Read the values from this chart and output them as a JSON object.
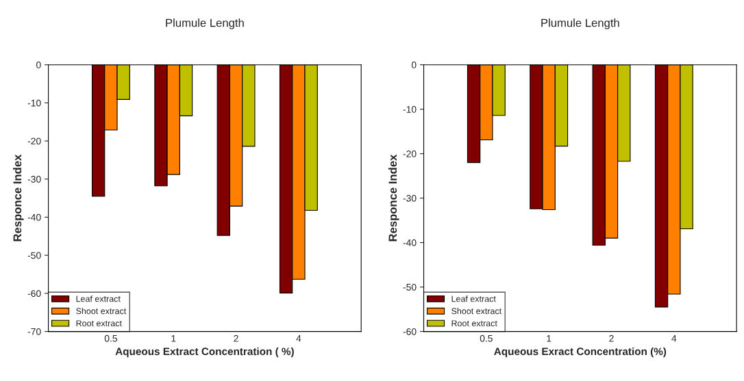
{
  "chart_data": [
    {
      "type": "bar",
      "title": "Plumule Length",
      "xlabel": "Aqueous Extract Concentration ( %)",
      "ylabel": "Responce Index",
      "categories": [
        "0.5",
        "1",
        "2",
        "4"
      ],
      "series": [
        {
          "name": "Leaf extract",
          "color": "#800000",
          "values": [
            -34.5,
            -31.8,
            -44.8,
            -59.9
          ]
        },
        {
          "name": "Shoot extract",
          "color": "#ff8000",
          "values": [
            -17.1,
            -28.8,
            -37.1,
            -56.3
          ]
        },
        {
          "name": "Root extract",
          "color": "#c0c000",
          "values": [
            -9.1,
            -13.4,
            -21.4,
            -38.2
          ]
        }
      ],
      "ylim": [
        -70,
        0
      ],
      "yticks": [
        0,
        -10,
        -20,
        -30,
        -40,
        -50,
        -60,
        -70
      ],
      "grid": false,
      "legend": "bottom left"
    },
    {
      "type": "bar",
      "title": "Plumule Length",
      "xlabel": "Aqueous Exract Concentration (%)",
      "ylabel": "Responce Index",
      "categories": [
        "0.5",
        "1",
        "2",
        "4"
      ],
      "series": [
        {
          "name": "Leaf extract",
          "color": "#800000",
          "values": [
            -22.0,
            -32.4,
            -40.6,
            -54.5
          ]
        },
        {
          "name": "Shoot extract",
          "color": "#ff8000",
          "values": [
            -16.9,
            -32.6,
            -39.0,
            -51.6
          ]
        },
        {
          "name": "Root extract",
          "color": "#c0c000",
          "values": [
            -11.4,
            -18.3,
            -21.7,
            -36.9
          ]
        }
      ],
      "ylim": [
        -60,
        0
      ],
      "yticks": [
        0,
        -10,
        -20,
        -30,
        -40,
        -50,
        -60
      ],
      "grid": false,
      "legend": "bottom left"
    }
  ]
}
